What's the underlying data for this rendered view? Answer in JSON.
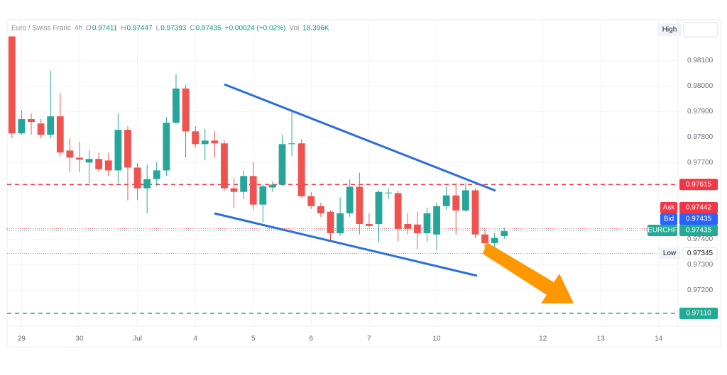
{
  "chart_data": {
    "type": "candlestick",
    "symbol": "Euro / Swiss Franc",
    "interval": "4h",
    "ohlc_legend": [
      {
        "label": "O",
        "value": "0.97411"
      },
      {
        "label": "H",
        "value": "0.97447"
      },
      {
        "label": "L",
        "value": "0.97393"
      },
      {
        "label": "C",
        "value": "0.97435"
      }
    ],
    "change": "+0.00024 (+0.02%)",
    "volume_label": "Vol",
    "volume": "18.396K",
    "high_button": "High",
    "up_color": "#26a69a",
    "down_color": "#ef5350",
    "open": [
      0.98195,
      0.97815,
      0.97871,
      0.97854,
      0.9781,
      0.97882,
      0.97748,
      0.9772,
      0.97701,
      0.97715,
      0.97709,
      0.9767,
      0.97829,
      0.97681,
      0.976,
      0.97636,
      0.9767,
      0.97857,
      0.97991,
      0.97823,
      0.97773,
      0.97787,
      0.97776,
      0.976,
      0.97586,
      0.97648,
      0.97536,
      0.97603,
      0.97614,
      0.97773,
      0.97776,
      0.97569,
      0.9753,
      0.97508,
      0.97424,
      0.97502,
      0.97606,
      0.9746,
      0.9746,
      0.97581,
      0.97581,
      0.9746,
      0.97458,
      0.97424,
      0.97419,
      0.9753,
      0.97572,
      0.97513,
      0.97592,
      0.97419,
      0.97385,
      0.97413
    ],
    "high": [
      0.98195,
      0.97907,
      0.97893,
      0.97871,
      0.98061,
      0.97972,
      0.97796,
      0.97782,
      0.97748,
      0.9774,
      0.9774,
      0.97893,
      0.97843,
      0.97698,
      0.97692,
      0.97703,
      0.97879,
      0.98047,
      0.98005,
      0.97843,
      0.97832,
      0.97823,
      0.97787,
      0.97642,
      0.9767,
      0.97703,
      0.97614,
      0.97628,
      0.9781,
      0.97899,
      0.97793,
      0.97586,
      0.97544,
      0.97513,
      0.97564,
      0.97636,
      0.97661,
      0.97502,
      0.97592,
      0.976,
      0.97592,
      0.97502,
      0.97508,
      0.97525,
      0.97544,
      0.97608,
      0.9762,
      0.9762,
      0.976,
      0.97441,
      0.97424,
      0.97446
    ],
    "low": [
      0.97796,
      0.9781,
      0.9781,
      0.97796,
      0.97796,
      0.97726,
      0.97664,
      0.97664,
      0.9762,
      0.97664,
      0.97648,
      0.9762,
      0.97553,
      0.97553,
      0.97502,
      0.97608,
      0.97648,
      0.97851,
      0.9772,
      0.97759,
      0.97709,
      0.9772,
      0.97592,
      0.97522,
      0.97558,
      0.97516,
      0.97466,
      0.97586,
      0.97608,
      0.97726,
      0.97564,
      0.97519,
      0.97488,
      0.97396,
      0.97413,
      0.97488,
      0.97419,
      0.97446,
      0.97391,
      0.97558,
      0.97391,
      0.97419,
      0.97363,
      0.97391,
      0.97357,
      0.97516,
      0.97419,
      0.97508,
      0.97405,
      0.97368,
      0.97368,
      0.97402
    ],
    "close": [
      0.97815,
      0.97871,
      0.9786,
      0.9781,
      0.97882,
      0.9774,
      0.9772,
      0.97712,
      0.97715,
      0.97675,
      0.9767,
      0.97829,
      0.97681,
      0.976,
      0.97636,
      0.9767,
      0.97857,
      0.97991,
      0.97823,
      0.97773,
      0.97787,
      0.97776,
      0.976,
      0.97586,
      0.97648,
      0.97536,
      0.97608,
      0.97614,
      0.97773,
      0.97776,
      0.97569,
      0.9753,
      0.97502,
      0.97424,
      0.97502,
      0.97606,
      0.9746,
      0.97452,
      0.97586,
      0.97583,
      0.97441,
      0.97441,
      0.97424,
      0.97502,
      0.9753,
      0.97572,
      0.97513,
      0.97592,
      0.97419,
      0.97385,
      0.97405,
      0.97432
    ],
    "xlim": [
      -0.5,
      69
    ],
    "xticks": [
      {
        "value": 1,
        "label": "29"
      },
      {
        "value": 7,
        "label": "30"
      },
      {
        "value": 13,
        "label": "Jul"
      },
      {
        "value": 19,
        "label": "4"
      },
      {
        "value": 25,
        "label": "5"
      },
      {
        "value": 31,
        "label": "6"
      },
      {
        "value": 37,
        "label": "7"
      },
      {
        "value": 44,
        "label": "10"
      },
      {
        "value": 55,
        "label": "12"
      },
      {
        "value": 61,
        "label": "13"
      },
      {
        "value": 67,
        "label": "14"
      }
    ],
    "ylim": [
      0.9706,
      0.9826
    ],
    "yticks": [
      {
        "value": 0.972,
        "label": "0.97200"
      },
      {
        "value": 0.973,
        "label": "0.97300"
      },
      {
        "value": 0.974,
        "label": "0.97400"
      },
      {
        "value": 0.977,
        "label": "0.97700"
      },
      {
        "value": 0.978,
        "label": "0.97800"
      },
      {
        "value": 0.979,
        "label": "0.97900"
      },
      {
        "value": 0.98,
        "label": "0.98000"
      },
      {
        "value": 0.981,
        "label": "0.98100"
      }
    ],
    "levels": [
      {
        "value": 0.97615,
        "color": "#f23645"
      },
      {
        "value": 0.9711,
        "label": "0.97110",
        "color": "#22ab94"
      }
    ],
    "price_tags": [
      {
        "name": "Ask",
        "value": 0.97442,
        "color": "#f23645"
      },
      {
        "name": "Bid",
        "value": 0.97435,
        "color": "#2962ff"
      },
      {
        "name": "EURCHF",
        "value": 0.97435,
        "color": "#22ab94"
      }
    ],
    "low_tag": {
      "name": "Low",
      "value": 0.97345
    }
  }
}
